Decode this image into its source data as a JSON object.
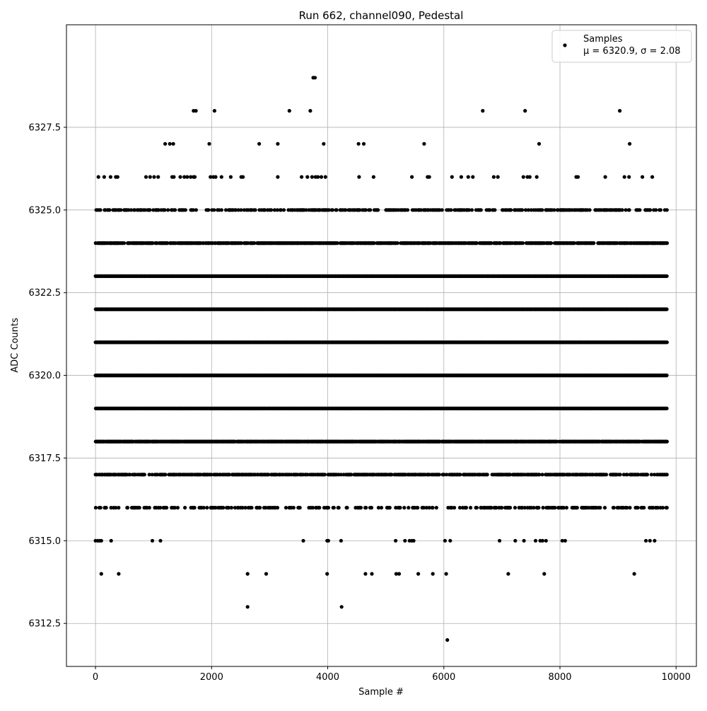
{
  "chart_data": {
    "type": "scatter",
    "title": "Run 662, channel090, Pedestal",
    "xlabel": "Sample #",
    "ylabel": "ADC Counts",
    "xlim": [
      -500,
      10350
    ],
    "ylim": [
      6311.2,
      6330.6
    ],
    "x_ticks": [
      0,
      2000,
      4000,
      6000,
      8000,
      10000
    ],
    "x_tick_labels": [
      "0",
      "2000",
      "4000",
      "6000",
      "8000",
      "10000"
    ],
    "y_ticks": [
      6312.5,
      6315.0,
      6317.5,
      6320.0,
      6322.5,
      6325.0,
      6327.5
    ],
    "y_tick_labels": [
      "6312.5",
      "6315.0",
      "6317.5",
      "6320.0",
      "6322.5",
      "6325.0",
      "6327.5"
    ],
    "grid": true,
    "legend_position": "top-right",
    "series": [
      {
        "name": "Samples",
        "legend_stats": "μ = 6320.9, σ = 2.08",
        "color": "#000000",
        "marker": "circle",
        "x_range": [
          0,
          9850
        ],
        "levels": [
          {
            "y": 6329,
            "x": [
              3750,
              3780
            ]
          },
          {
            "y": 6328,
            "x": [
              1690,
              1730,
              2050,
              3340,
              3700,
              6670,
              7400,
              9030
            ]
          },
          {
            "y": 6327,
            "x": [
              1200,
              1280,
              1340,
              1960,
              2820,
              3140,
              3930,
              4530,
              4620,
              5660,
              7640,
              9200
            ]
          },
          {
            "y": 6326,
            "x": [
              50,
              150,
              260,
              350,
              380,
              870,
              940,
              1010,
              1080,
              1320,
              1350,
              1460,
              1530,
              1580,
              1640,
              1690,
              1710,
              1980,
              2030,
              2070,
              2170,
              2330,
              2510,
              2540,
              3140,
              3550,
              3650,
              3730,
              3790,
              3830,
              3890,
              3960,
              4540,
              4790,
              5450,
              5720,
              5750,
              6140,
              6300,
              6420,
              6500,
              6860,
              6930,
              7370,
              7440,
              7480,
              7600,
              8280,
              8310,
              8780,
              9110,
              9190,
              9420,
              9590
            ]
          },
          {
            "y": 6325,
            "dense": 0.42
          },
          {
            "y": 6324,
            "dense": 0.75
          },
          {
            "y": 6323,
            "dense": 1.0
          },
          {
            "y": 6322,
            "dense": 1.0
          },
          {
            "y": 6321,
            "dense": 1.0
          },
          {
            "y": 6320,
            "dense": 1.0
          },
          {
            "y": 6319,
            "dense": 1.0
          },
          {
            "y": 6318,
            "dense": 0.9
          },
          {
            "y": 6317,
            "dense": 0.65
          },
          {
            "y": 6316,
            "dense": 0.3
          },
          {
            "y": 6315,
            "x": [
              0,
              40,
              70,
              100,
              270,
              980,
              1120,
              3580,
              3990,
              4010,
              4230,
              5170,
              5330,
              5410,
              5450,
              5480,
              6020,
              6110,
              6960,
              7230,
              7380,
              7580,
              7660,
              7700,
              7760,
              8040,
              8090,
              9480,
              9550,
              9630
            ]
          },
          {
            "y": 6314,
            "x": [
              100,
              400,
              2620,
              2940,
              3990,
              4650,
              4760,
              5180,
              5230,
              5560,
              5810,
              6040,
              7110,
              7730,
              9280
            ]
          },
          {
            "y": 6313,
            "x": [
              2620,
              4240
            ]
          },
          {
            "y": 6312,
            "x": [
              6060
            ]
          }
        ]
      }
    ]
  }
}
